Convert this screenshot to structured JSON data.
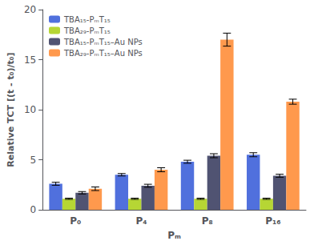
{
  "chart_data": {
    "type": "bar",
    "xlabel": "Pₘ",
    "ylabel": "Relative TCT [(t - t₀)/t₀]",
    "categories": [
      "P₀",
      "P₄",
      "P₈",
      "P₁₆"
    ],
    "series": [
      {
        "name": "TBA₁₅-PₘT₁₅",
        "values": [
          2.6,
          3.5,
          4.8,
          5.5
        ],
        "errors": [
          0.15,
          0.12,
          0.15,
          0.2
        ]
      },
      {
        "name": "TBA₂₉-PₘT₁₅",
        "values": [
          1.1,
          1.1,
          1.1,
          1.1
        ],
        "errors": [
          0.06,
          0.06,
          0.06,
          0.06
        ]
      },
      {
        "name": "TBA₁₅-PₘT₁₅–Au NPs",
        "values": [
          1.7,
          2.4,
          5.4,
          3.4
        ],
        "errors": [
          0.12,
          0.15,
          0.2,
          0.15
        ]
      },
      {
        "name": "TBA₂₉-PₘT₁₅–Au NPs",
        "values": [
          2.1,
          4.0,
          17.0,
          10.8
        ],
        "errors": [
          0.18,
          0.2,
          0.65,
          0.25
        ]
      }
    ],
    "ylim": [
      0,
      20
    ],
    "yticks": [
      0,
      5,
      10,
      15,
      20
    ],
    "grid": false,
    "legend": "upper left"
  }
}
